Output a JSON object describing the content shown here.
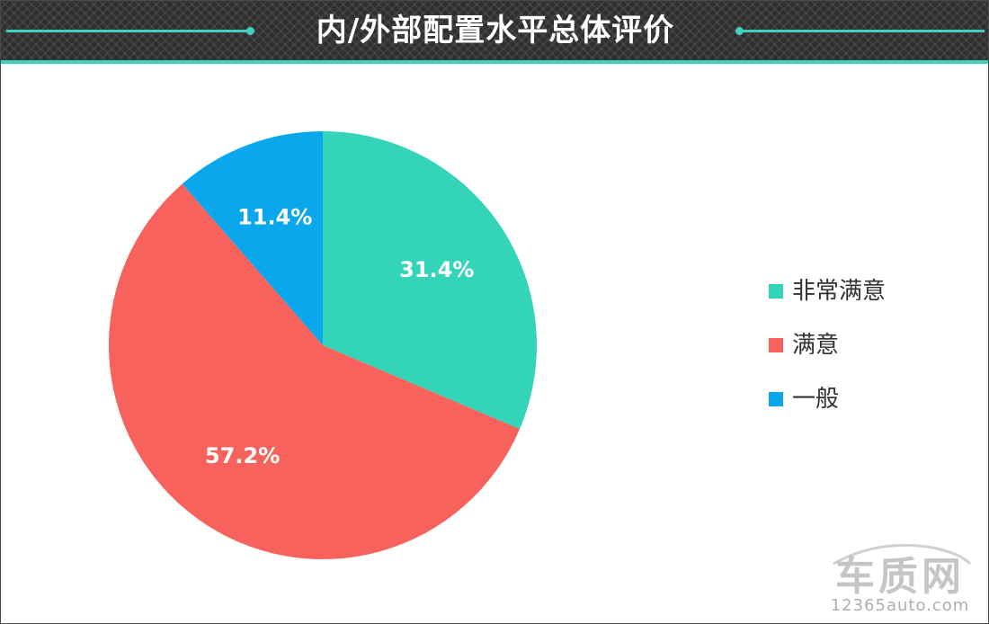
{
  "header": {
    "title": "内/外部配置水平总体评价"
  },
  "chart_data": {
    "type": "pie",
    "title": "内/外部配置水平总体评价",
    "slices": [
      {
        "label": "非常满意",
        "value": 31.4,
        "value_label": "31.4%",
        "color": "#34d4b8"
      },
      {
        "label": "满意",
        "value": 57.2,
        "value_label": "57.2%",
        "color": "#f8625c"
      },
      {
        "label": "一般",
        "value": 11.4,
        "value_label": "11.4%",
        "color": "#0aa7ec"
      }
    ],
    "start_angle": "12 o'clock",
    "direction": "clockwise",
    "legend_position": "right"
  },
  "legend": {
    "items": [
      {
        "label": "非常满意",
        "color": "#34d4b8"
      },
      {
        "label": "满意",
        "color": "#f8625c"
      },
      {
        "label": "一般",
        "color": "#0aa7ec"
      }
    ]
  },
  "watermark": {
    "logo_text": "车质网",
    "url": "12365auto.com"
  }
}
